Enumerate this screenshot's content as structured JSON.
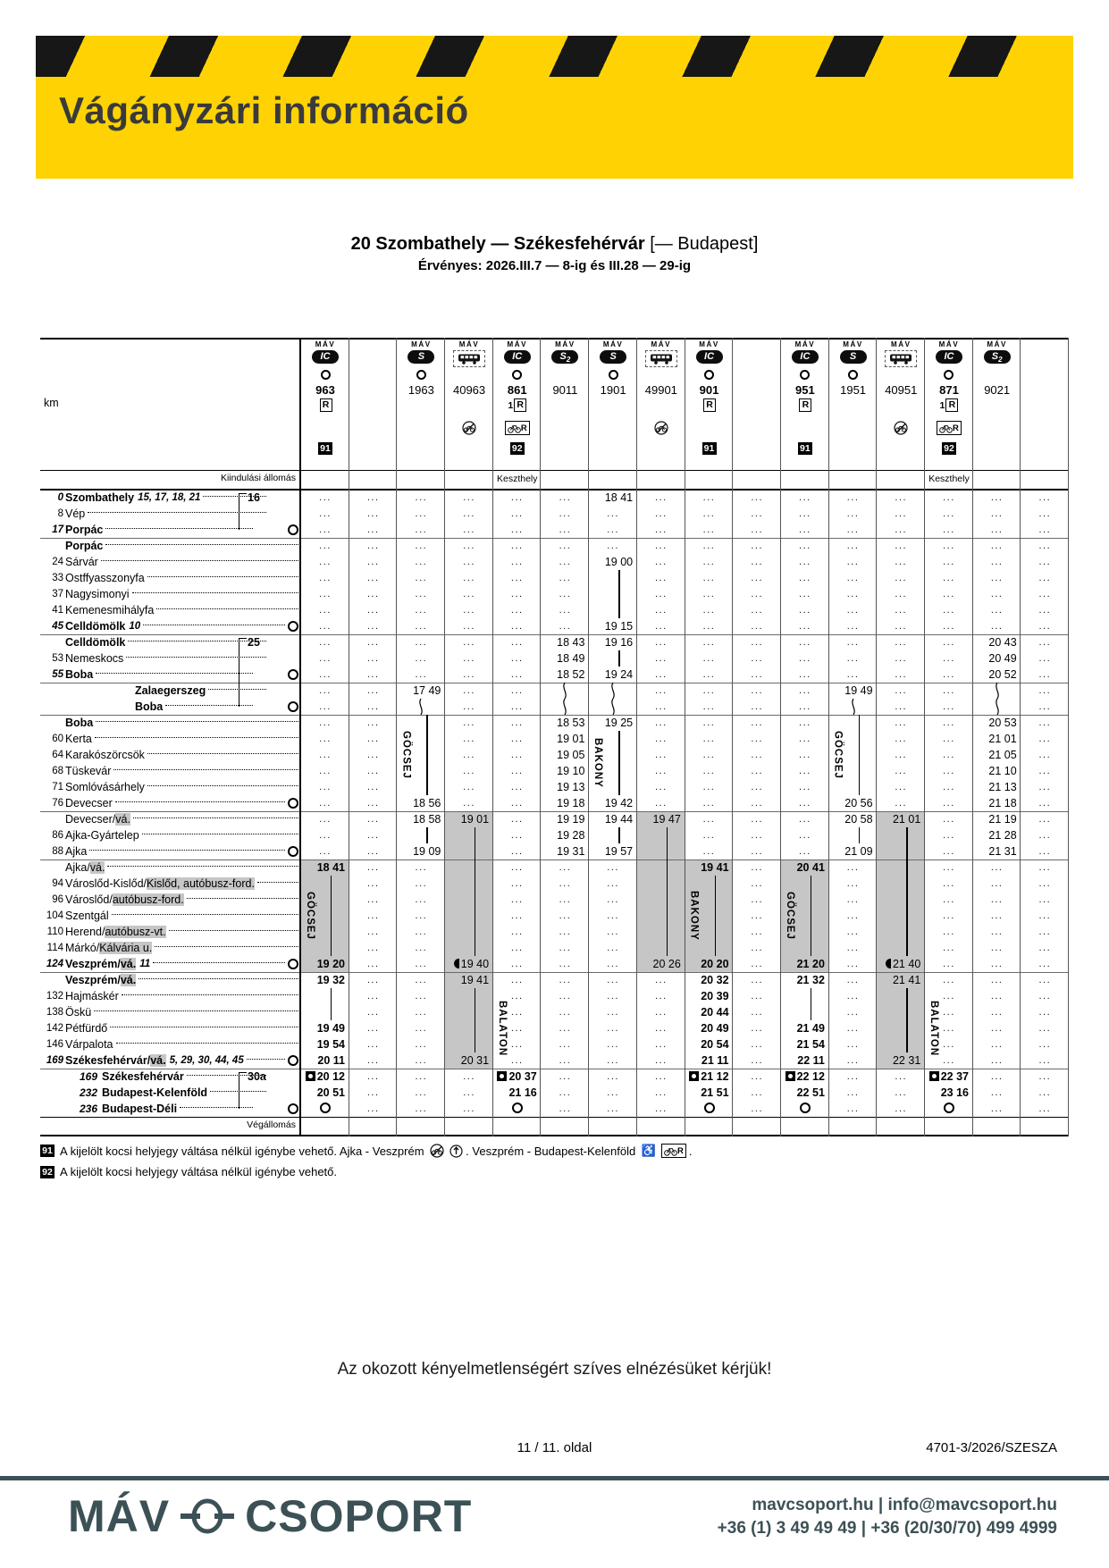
{
  "banner": {
    "title": "Vágányzári információ"
  },
  "heading": {
    "route": "20 Szombathely — Székesfehérvár",
    "route_suffix": " [— Budapest]",
    "validity": "Érvényes: 2026.III.7 — 8-ig és III.28 — 29-ig"
  },
  "table": {
    "km_label": "km",
    "operator_label": "MÁV",
    "origin_row_label": "Kiindulási állomás",
    "terminus_row_label": "Végállomás",
    "columns": [
      {
        "n": "963",
        "t": "IC",
        "o": 1,
        "r": "R",
        "bdg": "91"
      },
      {},
      {
        "n": "1963",
        "t": "S",
        "o": 1
      },
      {
        "n": "40963",
        "t": "BUS",
        "bk": "nobike"
      },
      {
        "n": "861",
        "t": "IC",
        "o": 1,
        "r": "1R",
        "bk": "bikeR",
        "bdg": "92",
        "org": "Keszthely"
      },
      {
        "n": "9011",
        "t": "S2"
      },
      {
        "n": "1901",
        "t": "S",
        "o": 1
      },
      {
        "n": "49901",
        "t": "BUS",
        "bk": "nobike"
      },
      {
        "n": "901",
        "t": "IC",
        "o": 1,
        "r": "R",
        "bdg": "91"
      },
      {},
      {
        "n": "951",
        "t": "IC",
        "o": 1,
        "r": "R",
        "bdg": "91"
      },
      {
        "n": "1951",
        "t": "S",
        "o": 1
      },
      {
        "n": "40951",
        "t": "BUS",
        "bk": "nobike"
      },
      {
        "n": "871",
        "t": "IC",
        "o": 1,
        "r": "1R",
        "bk": "bikeR",
        "bdg": "92",
        "org": "Keszthely"
      },
      {
        "n": "9021",
        "t": "S2"
      },
      {}
    ],
    "rows": [
      {
        "km": "0",
        "name": "Szombathely",
        "sfx": "15, 17, 18, 21",
        "b": 1,
        "c": {
          "6": "18 41"
        }
      },
      {
        "km": "8",
        "name": "Vép",
        "c": {}
      },
      {
        "km": "17",
        "name": "Porpác",
        "b": 1,
        "o": 1,
        "c": {}
      },
      {
        "name": "Porpác",
        "b": 1,
        "s": 1,
        "c": {}
      },
      {
        "km": "24",
        "name": "Sárvár",
        "c": {
          "6": "19 00"
        }
      },
      {
        "km": "33",
        "name": "Ostffyasszonyfa",
        "c": {
          "6": "|"
        }
      },
      {
        "km": "37",
        "name": "Nagysimonyi",
        "c": {
          "6": "|"
        }
      },
      {
        "km": "41",
        "name": "Kemenesmihályfa",
        "c": {
          "6": "|"
        }
      },
      {
        "km": "45",
        "name": "Celldömölk",
        "sfx": "10",
        "b": 1,
        "o": 1,
        "c": {
          "6": "19 15"
        }
      },
      {
        "name": "Celldömölk",
        "b": 1,
        "s": 1,
        "c": {
          "5": "18 43",
          "6": "19 16",
          "14": "20 43"
        }
      },
      {
        "km": "53",
        "name": "Nemeskocs",
        "c": {
          "5": "18 49",
          "6": "|",
          "14": "20 49"
        }
      },
      {
        "km": "55",
        "name": "Boba",
        "b": 1,
        "o": 1,
        "c": {
          "5": "18 52",
          "6": "19 24",
          "14": "20 52"
        }
      },
      {
        "name": "Zalaegerszeg",
        "b": 1,
        "i": 1,
        "s": 1,
        "c": {
          "2": "17 49",
          "5": "~",
          "6": "~",
          "11": "19 49",
          "14": "~"
        }
      },
      {
        "name": "Boba",
        "b": 1,
        "i": 1,
        "o": 1,
        "c": {
          "2": "~",
          "5": "~",
          "6": "~",
          "11": "~",
          "14": "~"
        }
      },
      {
        "name": "Boba",
        "b": 1,
        "s": 1,
        "c": {
          "2": "|",
          "5": "18 53",
          "6": "19 25",
          "11": "|",
          "14": "20 53"
        }
      },
      {
        "km": "60",
        "name": "Kerta",
        "c": {
          "2": "|",
          "5": "19 01",
          "6": "|",
          "11": "|",
          "14": "21 01"
        }
      },
      {
        "km": "64",
        "name": "Karakószörcsök",
        "c": {
          "2": "|",
          "5": "19 05",
          "6": "|",
          "11": "|",
          "14": "21 05"
        }
      },
      {
        "km": "68",
        "name": "Tüskevár",
        "c": {
          "2": "|",
          "5": "19 10",
          "6": "|",
          "11": "|",
          "14": "21 10"
        }
      },
      {
        "km": "71",
        "name": "Somlóvásárhely",
        "c": {
          "2": "|",
          "5": "19 13",
          "6": "|",
          "11": "|",
          "14": "21 13"
        }
      },
      {
        "km": "76",
        "name": "Devecser",
        "o": 1,
        "c": {
          "2": "18 56",
          "5": "19 18",
          "6": "19 42",
          "11": "20 56",
          "14": "21 18"
        }
      },
      {
        "name": "Devecser",
        "hl": "vá.",
        "s": 1,
        "c": {
          "2": "18 58",
          "3": "19 01",
          "5": "19 19",
          "6": "19 44",
          "7": "19 47",
          "11": "20 58",
          "12": "21 01",
          "14": "21 19"
        }
      },
      {
        "km": "86",
        "name": "Ajka-Gyártelep",
        "c": {
          "2": "|",
          "3": "|",
          "5": "19 28",
          "6": "|",
          "7": "|",
          "11": "|",
          "12": "|",
          "14": "21 28"
        }
      },
      {
        "km": "88",
        "name": "Ajka",
        "o": 1,
        "c": {
          "2": "19 09",
          "3": "|",
          "5": "19 31",
          "6": "19 57",
          "7": "|",
          "11": "21 09",
          "12": "|",
          "14": "21 31"
        }
      },
      {
        "name": "Ajka",
        "hl": "vá.",
        "s": 1,
        "c": {
          "0": "18 41",
          "3": "|",
          "7": "|",
          "8": "19 41",
          "10": "20 41",
          "12": "|"
        }
      },
      {
        "km": "94",
        "name": "Városlőd-Kislőd",
        "hl": "Kislőd, autóbusz-ford.",
        "c": {
          "0": "|",
          "3": "|",
          "7": "|",
          "8": "|",
          "10": "|",
          "12": "|"
        }
      },
      {
        "km": "96",
        "name": "Városlőd",
        "hl": "autóbusz-ford.",
        "c": {
          "0": "|",
          "3": "|",
          "7": "|",
          "8": "|",
          "10": "|",
          "12": "|"
        }
      },
      {
        "km": "104",
        "name": "Szentgál",
        "c": {
          "0": "|",
          "3": "|",
          "7": "|",
          "8": "|",
          "10": "|",
          "12": "|"
        }
      },
      {
        "km": "110",
        "name": "Herend",
        "hl": "autóbusz-vt.",
        "c": {
          "0": "|",
          "3": "|",
          "7": "|",
          "8": "|",
          "10": "|",
          "12": "|"
        }
      },
      {
        "km": "114",
        "name": "Márkó",
        "hl": "Kálvária u.",
        "c": {
          "0": "|",
          "3": "|",
          "7": "|",
          "8": "|",
          "10": "|",
          "12": "|"
        }
      },
      {
        "km": "124",
        "name": "Veszprém",
        "hl": "vá.",
        "sfx": "11",
        "b": 1,
        "o": 1,
        "c": {
          "0": "19 20",
          "3": "L:19 40",
          "7": "20 26",
          "8": "20 20",
          "10": "21 20",
          "12": "L:21 40"
        }
      },
      {
        "name": "Veszprém",
        "hl": "vá.",
        "b": 1,
        "s": 1,
        "c": {
          "0": "19 32",
          "3": "19 41",
          "8": "20 32",
          "10": "21 32",
          "12": "21 41"
        }
      },
      {
        "km": "132",
        "name": "Hajmáskér",
        "c": {
          "0": "|",
          "3": "|",
          "8": "20 39",
          "10": "|",
          "12": "|"
        }
      },
      {
        "km": "138",
        "name": "Öskü",
        "c": {
          "0": "|",
          "3": "|",
          "8": "20 44",
          "10": "|",
          "12": "|"
        }
      },
      {
        "km": "142",
        "name": "Pétfürdő",
        "c": {
          "0": "19 49",
          "3": "|",
          "8": "20 49",
          "10": "21 49",
          "12": "|"
        }
      },
      {
        "km": "146",
        "name": "Várpalota",
        "c": {
          "0": "19 54",
          "3": "|",
          "8": "20 54",
          "10": "21 54",
          "12": "|"
        }
      },
      {
        "km": "169",
        "name": "Székesfehérvár",
        "hl": "vá.",
        "sfx": "5, 29, 30, 44, 45",
        "b": 1,
        "o": 1,
        "c": {
          "0": "20 11",
          "3": "20 31",
          "8": "21 11",
          "10": "22 11",
          "12": "22 31"
        }
      },
      {
        "ikm": "169",
        "name": "Székesfehérvár",
        "b": 1,
        "s": 1,
        "c": {
          "0": "B:20 12",
          "4": "B:20 37",
          "8": "B:21 12",
          "10": "B:22 12",
          "13": "B:22 37"
        }
      },
      {
        "ikm": "232",
        "name": "Budapest-Kelenföld",
        "b": 1,
        "c": {
          "0": "20 51",
          "4": "21 16",
          "8": "21 51",
          "10": "22 51",
          "13": "23 16"
        }
      },
      {
        "ikm": "236",
        "name": "Budapest-Déli",
        "b": 1,
        "o": 1,
        "c": {
          "0": "O",
          "4": "O",
          "8": "O",
          "10": "O",
          "13": "O"
        }
      }
    ],
    "brackets": [
      {
        "label": "16",
        "from": 1,
        "to": 3
      },
      {
        "label": "25",
        "from": 10,
        "to": 14
      },
      {
        "label": "30a",
        "from": 37,
        "to": 39
      }
    ],
    "rotated_labels": [
      {
        "text": "GÖCSEJ",
        "col": 2,
        "from": 15,
        "to": 19
      },
      {
        "text": "BAKONY",
        "col": 6,
        "from": 16,
        "to": 19
      },
      {
        "text": "GÖCSEJ",
        "col": 11,
        "from": 15,
        "to": 19
      },
      {
        "text": "GÖCSEJ",
        "col": 0,
        "from": 25,
        "to": 29
      },
      {
        "text": "BAKONY",
        "col": 8,
        "from": 25,
        "to": 29
      },
      {
        "text": "GÖCSEJ",
        "col": 10,
        "from": 25,
        "to": 29
      },
      {
        "text": "BALATON",
        "col": 4,
        "from": 32,
        "to": 36
      },
      {
        "text": "BALATON",
        "col": 13,
        "from": 32,
        "to": 36
      }
    ],
    "shaded": [
      {
        "col": 0,
        "from": 24,
        "to": 30
      },
      {
        "col": 3,
        "from": 21,
        "to": 36
      },
      {
        "col": 7,
        "from": 21,
        "to": 30
      },
      {
        "col": 8,
        "from": 24,
        "to": 30
      },
      {
        "col": 10,
        "from": 24,
        "to": 30
      },
      {
        "col": 12,
        "from": 21,
        "to": 36
      }
    ]
  },
  "footnotes": {
    "n91": {
      "badge": "91",
      "t1": "A kijelölt kocsi helyjegy váltása nélkül igénybe vehető. Ajka - Veszprém ",
      "t2": ". Veszprém - Budapest-Kelenföld ",
      "t3": "."
    },
    "n92": {
      "badge": "92",
      "text": "A kijelölt kocsi helyjegy váltása nélkül igénybe vehető."
    }
  },
  "apology": "Az okozott kényelmetlenségért szíves elnézésüket kérjük!",
  "page_info": {
    "page": "11 / 11. oldal",
    "ref": "4701-3/2026/SZESZA"
  },
  "footer": {
    "brand_left": "MÁV",
    "brand_right": "CSOPORT",
    "web": "mavcsoport.hu | info@mavcsoport.hu",
    "phone": "+36 (1) 3 49 49 49 | +36 (20/30/70) 499 4999"
  },
  "colors": {
    "yellow": "#FFD303",
    "stripe_black": "#171717",
    "brand_teal": "#3C5156",
    "shade_gray": "#C6C6C6"
  }
}
